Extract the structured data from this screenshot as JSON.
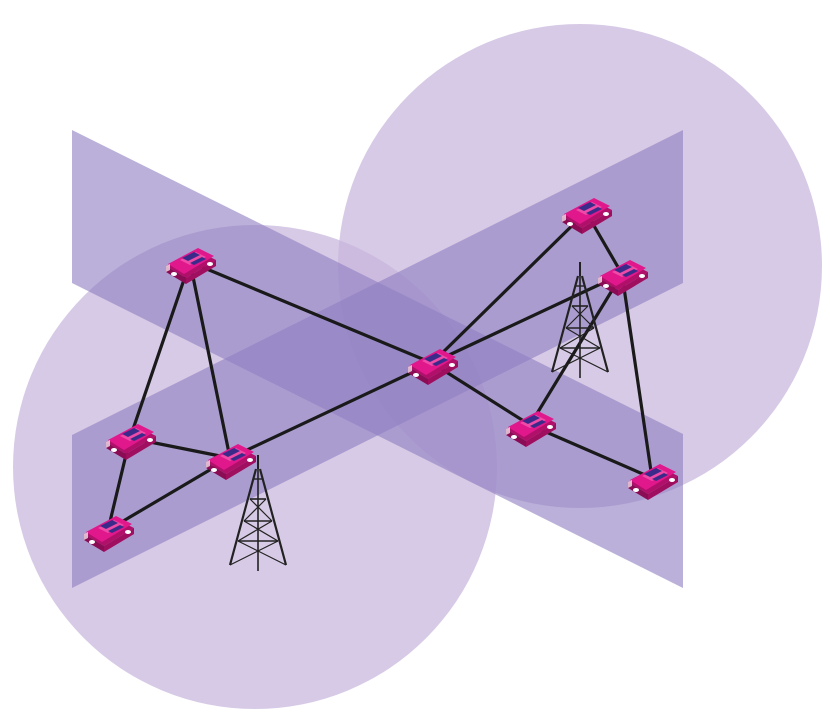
{
  "diagram": {
    "coverage_zones": [
      "cell-coverage-left",
      "cell-coverage-right"
    ],
    "roads": [
      "road-descending",
      "road-ascending"
    ],
    "towers": [
      "tower-left",
      "tower-right"
    ],
    "vehicles": [
      "vehicle-top-left",
      "vehicle-mid-left-upper",
      "vehicle-mid-left-lower",
      "vehicle-center-left",
      "vehicle-center",
      "vehicle-top-right",
      "vehicle-right-upper",
      "vehicle-right-lower-mid",
      "vehicle-bottom-right"
    ],
    "links": [
      [
        "vehicle-top-left",
        "vehicle-mid-left-upper"
      ],
      [
        "vehicle-top-left",
        "vehicle-center-left"
      ],
      [
        "vehicle-top-left",
        "vehicle-center"
      ],
      [
        "vehicle-mid-left-upper",
        "vehicle-center-left"
      ],
      [
        "vehicle-mid-left-upper",
        "vehicle-mid-left-lower"
      ],
      [
        "vehicle-mid-left-lower",
        "vehicle-center-left"
      ],
      [
        "vehicle-center-left",
        "vehicle-center"
      ],
      [
        "vehicle-center",
        "vehicle-top-right"
      ],
      [
        "vehicle-center",
        "vehicle-right-upper"
      ],
      [
        "vehicle-center",
        "vehicle-right-lower-mid"
      ],
      [
        "vehicle-top-right",
        "vehicle-right-upper"
      ],
      [
        "vehicle-right-upper",
        "vehicle-right-lower-mid"
      ],
      [
        "vehicle-right-upper",
        "vehicle-bottom-right"
      ],
      [
        "vehicle-right-lower-mid",
        "vehicle-bottom-right"
      ]
    ],
    "colors": {
      "coverage": "#c8b6dc",
      "road": "#8f7fc2",
      "vehicle_body": "#e0188c",
      "vehicle_window": "#3a2a8a",
      "link": "#1a1a1a",
      "tower": "#222222"
    }
  }
}
